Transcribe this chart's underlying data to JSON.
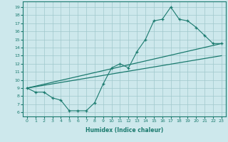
{
  "xlabel": "Humidex (Indice chaleur)",
  "xlim": [
    -0.5,
    23.5
  ],
  "ylim": [
    5.5,
    19.7
  ],
  "yticks": [
    6,
    7,
    8,
    9,
    10,
    11,
    12,
    13,
    14,
    15,
    16,
    17,
    18,
    19
  ],
  "xticks": [
    0,
    1,
    2,
    3,
    4,
    5,
    6,
    7,
    8,
    9,
    10,
    11,
    12,
    13,
    14,
    15,
    16,
    17,
    18,
    19,
    20,
    21,
    22,
    23
  ],
  "bg_color": "#cde8ec",
  "grid_color": "#a0c8cc",
  "line_color": "#1a7a6e",
  "line1_x": [
    0,
    1,
    2,
    3,
    4,
    5,
    6,
    7,
    8,
    9,
    10,
    11,
    12,
    13,
    14,
    15,
    16,
    17,
    18,
    19,
    20,
    21,
    22,
    23
  ],
  "line1_y": [
    9.0,
    8.5,
    8.5,
    7.8,
    7.5,
    6.2,
    6.2,
    6.2,
    7.2,
    9.5,
    11.5,
    12.0,
    11.5,
    13.5,
    15.0,
    17.3,
    17.5,
    19.0,
    17.5,
    17.3,
    16.5,
    15.5,
    14.5,
    14.5
  ],
  "line2_x": [
    0,
    23
  ],
  "line2_y": [
    9.0,
    14.5
  ],
  "line3_x": [
    0,
    23
  ],
  "line3_y": [
    9.0,
    13.0
  ]
}
